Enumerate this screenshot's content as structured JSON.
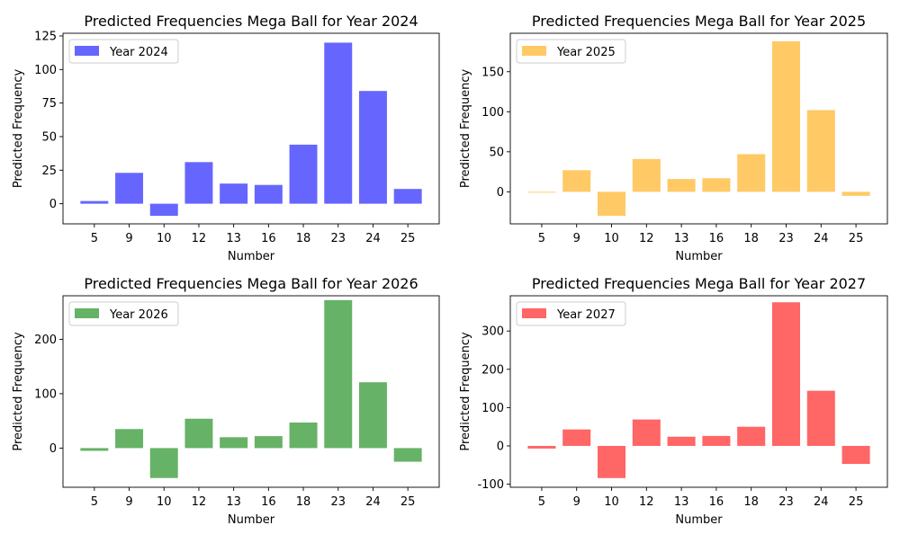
{
  "chart_data": [
    {
      "type": "bar",
      "title": "Predicted Frequencies Mega Ball for Year 2024",
      "xlabel": "Number",
      "ylabel": "Predicted Frequency",
      "categories": [
        "5",
        "9",
        "10",
        "12",
        "13",
        "16",
        "18",
        "23",
        "24",
        "25"
      ],
      "series": [
        {
          "name": "Year 2024",
          "values": [
            2,
            23,
            -9,
            31,
            15,
            14,
            44,
            120,
            84,
            11
          ]
        }
      ],
      "color": "#6666ff",
      "ylim": [
        -15,
        127
      ],
      "yticks": [
        0,
        25,
        50,
        75,
        100,
        125
      ],
      "legend": "top-left"
    },
    {
      "type": "bar",
      "title": "Predicted Frequencies Mega Ball for Year 2025",
      "xlabel": "Number",
      "ylabel": "Predicted Frequency",
      "categories": [
        "5",
        "9",
        "10",
        "12",
        "13",
        "16",
        "18",
        "23",
        "24",
        "25"
      ],
      "series": [
        {
          "name": "Year 2025",
          "values": [
            -1,
            27,
            -30,
            41,
            16,
            17,
            47,
            188,
            102,
            -5
          ]
        }
      ],
      "color": "#ffc966",
      "ylim": [
        -40,
        198
      ],
      "yticks": [
        0,
        50,
        100,
        150
      ],
      "legend": "top-left"
    },
    {
      "type": "bar",
      "title": "Predicted Frequencies Mega Ball for Year 2026",
      "xlabel": "Number",
      "ylabel": "Predicted Frequency",
      "categories": [
        "5",
        "9",
        "10",
        "12",
        "13",
        "16",
        "18",
        "23",
        "24",
        "25"
      ],
      "series": [
        {
          "name": "Year 2026",
          "values": [
            -5,
            35,
            -55,
            54,
            20,
            22,
            47,
            272,
            121,
            -25
          ]
        }
      ],
      "color": "#66b266",
      "ylim": [
        -72,
        280
      ],
      "yticks": [
        0,
        100,
        200
      ],
      "legend": "top-left"
    },
    {
      "type": "bar",
      "title": "Predicted Frequencies Mega Ball for Year 2027",
      "xlabel": "Number",
      "ylabel": "Predicted Frequency",
      "categories": [
        "5",
        "9",
        "10",
        "12",
        "13",
        "16",
        "18",
        "23",
        "24",
        "25"
      ],
      "series": [
        {
          "name": "Year 2027",
          "values": [
            -7,
            43,
            -84,
            69,
            24,
            26,
            50,
            375,
            144,
            -47
          ]
        }
      ],
      "color": "#ff6666",
      "ylim": [
        -108,
        392
      ],
      "yticks": [
        -100,
        0,
        100,
        200,
        300
      ],
      "legend": "top-left"
    }
  ]
}
